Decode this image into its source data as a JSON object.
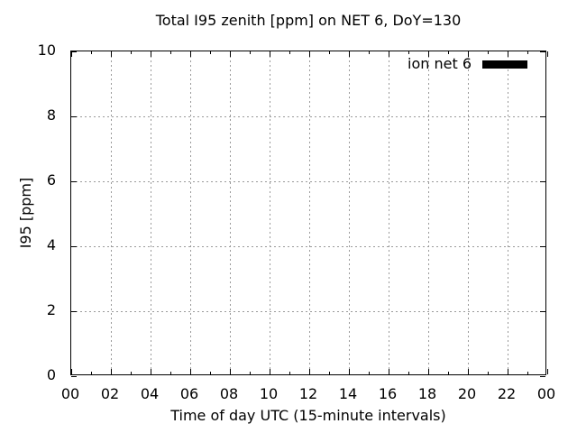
{
  "figure": {
    "background_color": "#ffffff",
    "axis_color": "#000000",
    "grid_color": "#9a9a9a",
    "text_color": "#000000"
  },
  "chart_data": {
    "type": "line",
    "title": "Total I95 zenith [ppm] on NET 6, DoY=130",
    "xlabel": "Time of day UTC (15-minute intervals)",
    "ylabel": "I95 [ppm]",
    "xlim": [
      0,
      24
    ],
    "ylim": [
      0,
      10
    ],
    "x_major_tick_hours": [
      0,
      2,
      4,
      6,
      8,
      10,
      12,
      14,
      16,
      18,
      20,
      22,
      24
    ],
    "x_tick_labels": [
      "00",
      "02",
      "04",
      "06",
      "08",
      "10",
      "12",
      "14",
      "16",
      "18",
      "20",
      "22",
      "00"
    ],
    "x_minor_ticks_per_interval": 1,
    "y_ticks": [
      0,
      2,
      4,
      6,
      8,
      10
    ],
    "y_tick_labels": [
      "0",
      "2",
      "4",
      "6",
      "8",
      "10"
    ],
    "grid": "dotted gray lines at major x and y ticks",
    "legend_position": "inside top-right",
    "legend": {
      "entries": [
        {
          "label": "ion net 6",
          "swatch_color": "#000000"
        }
      ]
    },
    "series": [
      {
        "name": "ion net 6",
        "points": []
      }
    ]
  }
}
